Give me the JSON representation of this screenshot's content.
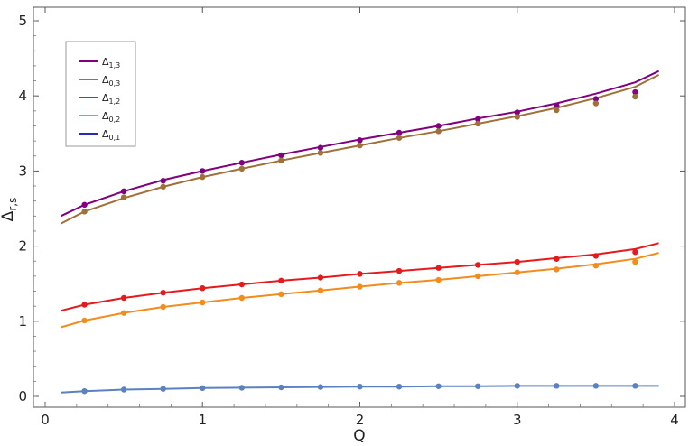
{
  "chart_data": {
    "type": "line",
    "title": "",
    "xlabel": "Q",
    "ylabel": "Δ_{r,s}",
    "xlim": [
      0,
      4
    ],
    "ylim": [
      0,
      5
    ],
    "xticks": [
      "0",
      "1",
      "2",
      "3",
      "4"
    ],
    "yticks": [
      "0",
      "1",
      "2",
      "3",
      "4",
      "5"
    ],
    "grid": false,
    "legend_placement": "top-left",
    "series": [
      {
        "name": "Δ1,3",
        "name_base": "Δ",
        "name_sub": "1,3",
        "color": "#800080",
        "line_x": [
          0.1,
          0.25,
          0.5,
          0.75,
          1,
          1.25,
          1.5,
          1.75,
          2,
          2.25,
          2.5,
          2.75,
          3,
          3.25,
          3.5,
          3.75,
          3.9
        ],
        "line_y": [
          2.4,
          2.55,
          2.73,
          2.88,
          3.0,
          3.11,
          3.22,
          3.32,
          3.42,
          3.51,
          3.6,
          3.7,
          3.79,
          3.9,
          4.03,
          4.18,
          4.33
        ],
        "points_x": [
          0.25,
          0.5,
          0.75,
          1,
          1.25,
          1.5,
          1.75,
          2,
          2.25,
          2.5,
          2.75,
          3,
          3.25,
          3.5,
          3.75
        ],
        "points_y": [
          2.55,
          2.73,
          2.87,
          3.0,
          3.11,
          3.21,
          3.31,
          3.41,
          3.51,
          3.6,
          3.69,
          3.78,
          3.87,
          3.96,
          4.05
        ]
      },
      {
        "name": "Δ0,3",
        "name_base": "Δ",
        "name_sub": "0,3",
        "color": "#A0703A",
        "line_x": [
          0.1,
          0.25,
          0.5,
          0.75,
          1,
          1.25,
          1.5,
          1.75,
          2,
          2.25,
          2.5,
          2.75,
          3,
          3.25,
          3.5,
          3.75,
          3.9
        ],
        "line_y": [
          2.3,
          2.46,
          2.64,
          2.79,
          2.92,
          3.03,
          3.14,
          3.24,
          3.34,
          3.44,
          3.53,
          3.63,
          3.73,
          3.84,
          3.97,
          4.12,
          4.28
        ],
        "points_x": [
          0.25,
          0.5,
          0.75,
          1,
          1.25,
          1.5,
          1.75,
          2,
          2.25,
          2.5,
          2.75,
          3,
          3.25,
          3.5,
          3.75
        ],
        "points_y": [
          2.46,
          2.65,
          2.79,
          2.92,
          3.03,
          3.14,
          3.24,
          3.34,
          3.44,
          3.53,
          3.63,
          3.72,
          3.81,
          3.9,
          3.99
        ]
      },
      {
        "name": "Δ1,2",
        "name_base": "Δ",
        "name_sub": "1,2",
        "color": "#E41A1C",
        "line_x": [
          0.1,
          0.25,
          0.5,
          0.75,
          1,
          1.25,
          1.5,
          1.75,
          2,
          2.25,
          2.5,
          2.75,
          3,
          3.25,
          3.5,
          3.75,
          3.9
        ],
        "line_y": [
          1.14,
          1.22,
          1.31,
          1.38,
          1.44,
          1.49,
          1.54,
          1.58,
          1.63,
          1.67,
          1.71,
          1.75,
          1.79,
          1.84,
          1.89,
          1.96,
          2.04
        ],
        "points_x": [
          0.25,
          0.5,
          0.75,
          1,
          1.25,
          1.5,
          1.75,
          2,
          2.25,
          2.5,
          2.75,
          3,
          3.25,
          3.5,
          3.75
        ],
        "points_y": [
          1.22,
          1.31,
          1.38,
          1.44,
          1.49,
          1.54,
          1.58,
          1.63,
          1.67,
          1.71,
          1.75,
          1.79,
          1.83,
          1.87,
          1.92
        ]
      },
      {
        "name": "Δ0,2",
        "name_base": "Δ",
        "name_sub": "0,2",
        "color": "#F28C1C",
        "line_x": [
          0.1,
          0.25,
          0.5,
          0.75,
          1,
          1.25,
          1.5,
          1.75,
          2,
          2.25,
          2.5,
          2.75,
          3,
          3.25,
          3.5,
          3.75,
          3.9
        ],
        "line_y": [
          0.92,
          1.01,
          1.11,
          1.19,
          1.25,
          1.31,
          1.36,
          1.41,
          1.46,
          1.51,
          1.55,
          1.6,
          1.65,
          1.7,
          1.76,
          1.83,
          1.91
        ],
        "points_x": [
          0.25,
          0.5,
          0.75,
          1,
          1.25,
          1.5,
          1.75,
          2,
          2.25,
          2.5,
          2.75,
          3,
          3.25,
          3.5,
          3.75
        ],
        "points_y": [
          1.01,
          1.11,
          1.19,
          1.25,
          1.31,
          1.36,
          1.41,
          1.46,
          1.51,
          1.55,
          1.6,
          1.65,
          1.69,
          1.74,
          1.79
        ]
      },
      {
        "name": "Δ0,1",
        "name_base": "Δ",
        "name_sub": "0,1",
        "color": "#2A2AB8",
        "line_color": "#5B82C0",
        "line_x": [
          0.1,
          0.25,
          0.5,
          0.75,
          1,
          1.25,
          1.5,
          1.75,
          2,
          2.25,
          2.5,
          2.75,
          3,
          3.25,
          3.5,
          3.75,
          3.9
        ],
        "line_y": [
          0.05,
          0.07,
          0.09,
          0.1,
          0.11,
          0.115,
          0.12,
          0.125,
          0.13,
          0.13,
          0.135,
          0.135,
          0.14,
          0.14,
          0.14,
          0.14,
          0.14
        ],
        "points_x": [
          0.25,
          0.5,
          0.75,
          1,
          1.25,
          1.5,
          1.75,
          2,
          2.25,
          2.5,
          2.75,
          3,
          3.25,
          3.5,
          3.75
        ],
        "points_y": [
          0.07,
          0.09,
          0.1,
          0.11,
          0.115,
          0.12,
          0.125,
          0.13,
          0.13,
          0.135,
          0.135,
          0.14,
          0.14,
          0.14,
          0.14
        ]
      }
    ]
  }
}
